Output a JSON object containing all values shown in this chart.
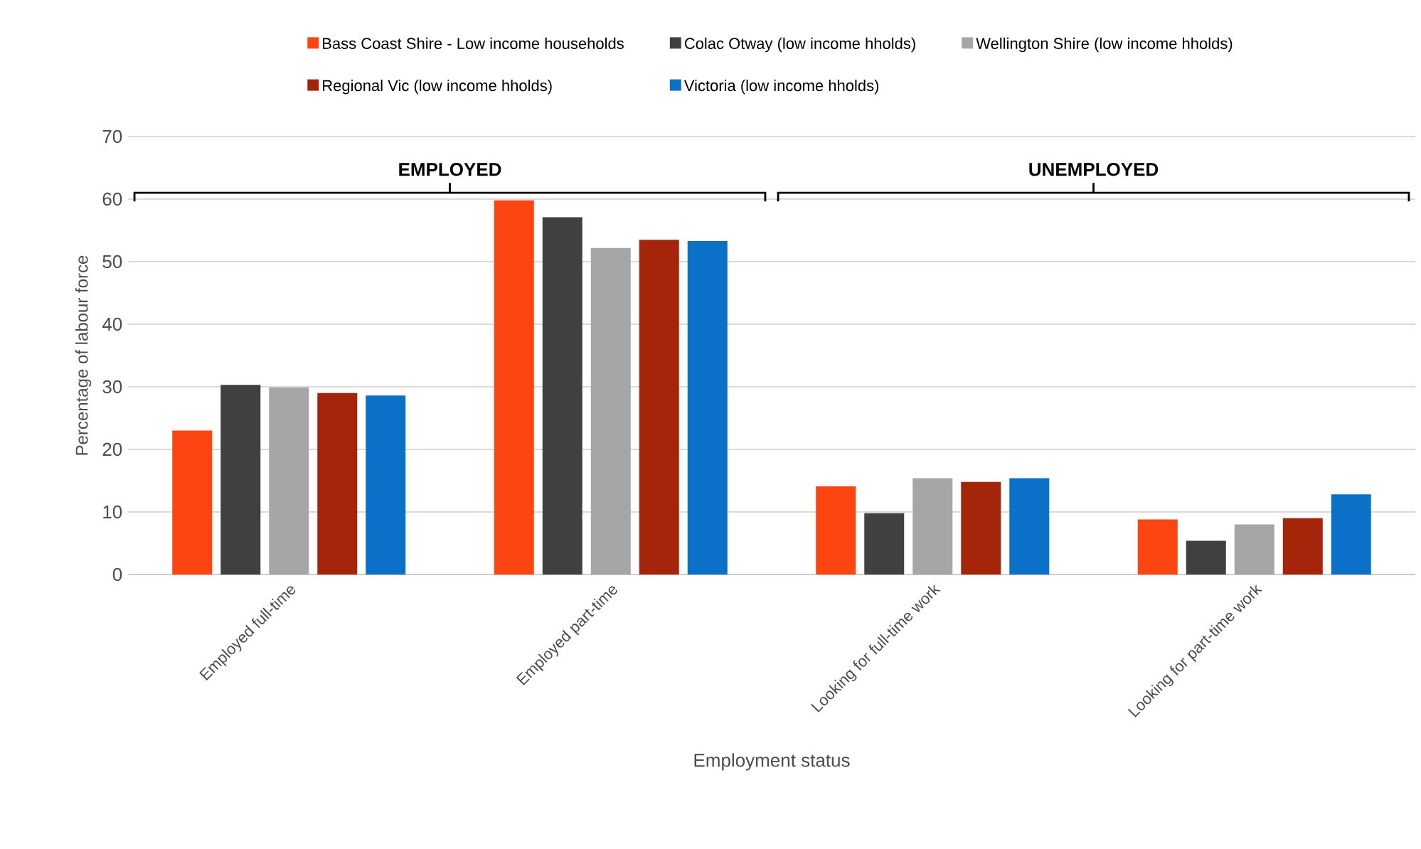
{
  "chart_data": {
    "type": "bar",
    "xlabel": "Employment status",
    "ylabel": "Percentage of labour force",
    "categories": [
      "Employed full-time",
      "Employed part-time",
      "Looking for full-time work",
      "Looking for part-time work"
    ],
    "series": [
      {
        "name": "Bass Coast Shire - Low income households",
        "color": "#fc4510",
        "values": [
          23.0,
          59.8,
          14.1,
          8.8
        ]
      },
      {
        "name": "Colac Otway (low income hholds)",
        "color": "#404040",
        "values": [
          30.3,
          57.1,
          9.8,
          5.4
        ]
      },
      {
        "name": "Wellington Shire (low income hholds)",
        "color": "#a6a6a6",
        "values": [
          29.9,
          52.2,
          15.4,
          8.0
        ]
      },
      {
        "name": "Regional Vic (low income hholds)",
        "color": "#a5250a",
        "values": [
          29.0,
          53.5,
          14.8,
          9.0
        ]
      },
      {
        "name": "Victoria (low income hholds)",
        "color": "#0a70c8",
        "values": [
          28.6,
          53.3,
          15.4,
          12.8
        ]
      }
    ],
    "ylim": [
      0,
      70
    ],
    "yticks": [
      0,
      10,
      20,
      30,
      40,
      50,
      60,
      70
    ],
    "grid": "y",
    "legend": "top",
    "annotations": [
      "EMPLOYED",
      "UNEMPLOYED"
    ]
  }
}
